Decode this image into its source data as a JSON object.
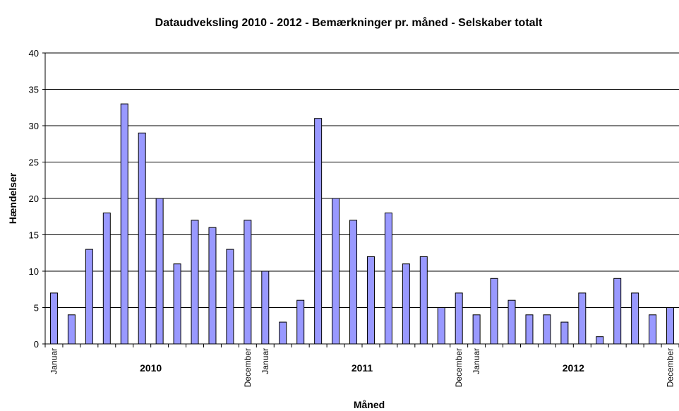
{
  "chart_data": {
    "type": "bar",
    "title": "Dataudveksling 2010 - 2012 - Bemærkninger pr. måned - Selskaber totalt",
    "x_label": "Måned",
    "y_label": "Hændelser",
    "categories": [
      "Januar",
      null,
      null,
      null,
      null,
      null,
      null,
      null,
      null,
      null,
      null,
      "December",
      "Januar",
      null,
      null,
      null,
      null,
      null,
      null,
      null,
      null,
      null,
      null,
      "December",
      "Januar",
      null,
      null,
      null,
      null,
      null,
      null,
      null,
      null,
      null,
      null,
      "December"
    ],
    "groups": [
      "2010",
      "2011",
      "2012"
    ],
    "values": [
      7,
      4,
      13,
      18,
      33,
      29,
      20,
      11,
      17,
      16,
      13,
      17,
      10,
      3,
      6,
      31,
      20,
      17,
      12,
      18,
      11,
      12,
      5,
      7,
      4,
      9,
      6,
      4,
      4,
      3,
      7,
      1,
      9,
      7,
      4,
      5
    ],
    "color": "#9999ff",
    "ylim": [
      0,
      40
    ],
    "yticks": [
      0,
      5,
      10,
      15,
      20,
      25,
      30,
      35,
      40
    ],
    "grid": true
  }
}
